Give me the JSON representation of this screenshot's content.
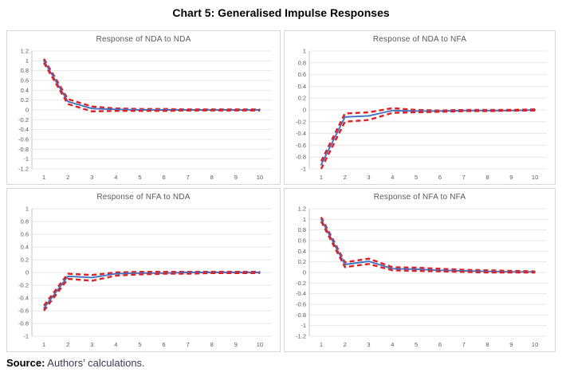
{
  "page_title": "Chart 5: Generalised Impulse Responses",
  "source": {
    "label": "Source:",
    "text": " Authors’ calculations."
  },
  "colors": {
    "line_blue": "#4472c4",
    "band_red": "#e02020",
    "grid": "#e7e7e7",
    "axis_line": "#c6c6c6",
    "axis_text": "#595959",
    "panel_border": "#d7d7d7",
    "title_text": "#000000",
    "panel_title_text": "#595959"
  },
  "chart_data": [
    {
      "type": "line",
      "title": "Response of NDA to NDA",
      "x": [
        "1",
        "2",
        "3",
        "4",
        "5",
        "6",
        "7",
        "8",
        "9",
        "10"
      ],
      "ylim": [
        -1.2,
        1.2
      ],
      "yticks": [
        "1.2",
        "1",
        "0.8",
        "0.6",
        "0.4",
        "0.2",
        "0",
        "-0.2",
        "-0.4",
        "-0.6",
        "-0.8",
        "-1",
        "-1.2"
      ],
      "grid": true,
      "legend": "none",
      "series": [
        {
          "name": "upper band",
          "style": "dashed",
          "values": [
            1.04,
            0.22,
            0.07,
            0.03,
            0.02,
            0.02,
            0.01,
            0.01,
            0.01,
            0.01
          ]
        },
        {
          "name": "response",
          "style": "solid",
          "values": [
            1.0,
            0.17,
            0.03,
            0.01,
            0.0,
            0.0,
            0.0,
            0.0,
            0.0,
            0.0
          ]
        },
        {
          "name": "lower band",
          "style": "dashed",
          "values": [
            0.96,
            0.12,
            -0.03,
            -0.02,
            -0.02,
            -0.02,
            -0.01,
            -0.01,
            -0.01,
            -0.01
          ]
        }
      ]
    },
    {
      "type": "line",
      "title": "Response of NDA to NFA",
      "x": [
        "1",
        "2",
        "3",
        "4",
        "5",
        "6",
        "7",
        "8",
        "9",
        "10"
      ],
      "ylim": [
        -1.0,
        1.0
      ],
      "yticks": [
        "1",
        "0.8",
        "0.6",
        "0.4",
        "0.2",
        "0",
        "-0.2",
        "-0.4",
        "-0.6",
        "-0.8",
        "-1"
      ],
      "grid": true,
      "legend": "none",
      "series": [
        {
          "name": "upper band",
          "style": "dashed",
          "values": [
            -0.87,
            -0.06,
            -0.04,
            0.03,
            0.0,
            -0.01,
            0.0,
            0.0,
            0.0,
            0.01
          ]
        },
        {
          "name": "response",
          "style": "solid",
          "values": [
            -0.93,
            -0.12,
            -0.1,
            -0.01,
            -0.02,
            -0.02,
            -0.01,
            -0.01,
            -0.01,
            0.0
          ]
        },
        {
          "name": "lower band",
          "style": "dashed",
          "values": [
            -1.0,
            -0.2,
            -0.17,
            -0.05,
            -0.04,
            -0.03,
            -0.02,
            -0.02,
            -0.01,
            -0.01
          ]
        }
      ]
    },
    {
      "type": "line",
      "title": "Response of NFA to NDA",
      "x": [
        "1",
        "2",
        "3",
        "4",
        "5",
        "6",
        "7",
        "8",
        "9",
        "10"
      ],
      "ylim": [
        -1.0,
        1.0
      ],
      "yticks": [
        "1",
        "0.8",
        "0.6",
        "0.4",
        "0.2",
        "0",
        "-0.2",
        "-0.4",
        "-0.6",
        "-0.8",
        "-1"
      ],
      "grid": true,
      "legend": "none",
      "series": [
        {
          "name": "upper band",
          "style": "dashed",
          "values": [
            -0.52,
            -0.02,
            -0.04,
            0.0,
            0.01,
            0.01,
            0.01,
            0.01,
            0.01,
            0.01
          ]
        },
        {
          "name": "response",
          "style": "solid",
          "values": [
            -0.56,
            -0.06,
            -0.08,
            -0.02,
            -0.01,
            -0.01,
            0.0,
            0.0,
            0.0,
            0.0
          ]
        },
        {
          "name": "lower band",
          "style": "dashed",
          "values": [
            -0.6,
            -0.1,
            -0.13,
            -0.05,
            -0.03,
            -0.02,
            -0.02,
            -0.01,
            -0.01,
            -0.01
          ]
        }
      ]
    },
    {
      "type": "line",
      "title": "Response of NFA to NFA",
      "x": [
        "1",
        "2",
        "3",
        "4",
        "5",
        "6",
        "7",
        "8",
        "9",
        "10"
      ],
      "ylim": [
        -1.2,
        1.2
      ],
      "yticks": [
        "1.2",
        "1",
        "0.8",
        "0.6",
        "0.4",
        "0.2",
        "0",
        "-0.2",
        "-0.4",
        "-0.6",
        "-0.8",
        "-1",
        "-1.2"
      ],
      "grid": true,
      "legend": "none",
      "series": [
        {
          "name": "upper band",
          "style": "dashed",
          "values": [
            1.04,
            0.19,
            0.26,
            0.1,
            0.09,
            0.07,
            0.05,
            0.04,
            0.03,
            0.02
          ]
        },
        {
          "name": "response",
          "style": "solid",
          "values": [
            1.0,
            0.15,
            0.21,
            0.07,
            0.06,
            0.04,
            0.03,
            0.02,
            0.01,
            0.01
          ]
        },
        {
          "name": "lower band",
          "style": "dashed",
          "values": [
            0.96,
            0.1,
            0.16,
            0.04,
            0.03,
            0.02,
            0.01,
            0.0,
            0.0,
            0.0
          ]
        }
      ]
    }
  ]
}
